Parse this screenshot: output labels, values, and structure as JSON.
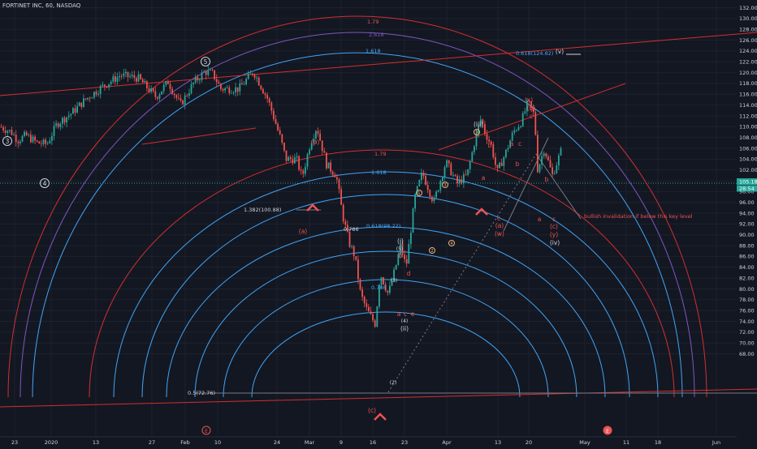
{
  "header": {
    "title": "FORTINET INC, 60, NASDAQ"
  },
  "price_axis": {
    "ticks": [
      "132.00",
      "130.00",
      "128.00",
      "126.00",
      "124.00",
      "122.00",
      "120.00",
      "118.00",
      "116.00",
      "114.00",
      "112.00",
      "110.00",
      "108.00",
      "106.00",
      "104.00",
      "102.00",
      "100.00",
      "98.00",
      "96.00",
      "94.00",
      "92.00",
      "90.00",
      "88.00",
      "86.00",
      "84.00",
      "82.00",
      "80.00",
      "78.00",
      "76.00",
      "74.00",
      "72.00",
      "70.00",
      "68.00"
    ],
    "last_price_badge": "105.18",
    "second_badge": "28:54"
  },
  "time_axis": {
    "ticks": [
      "23",
      "2020",
      "13",
      "27",
      "Feb",
      "10",
      "24",
      "Mar",
      "9",
      "16",
      "23",
      "Apr",
      "13",
      "20",
      "May",
      "11",
      "18",
      "Jun"
    ]
  },
  "colors": {
    "bg": "#131722",
    "up": "#26a69a",
    "down": "#ef5350",
    "red_line": "#d32f2f",
    "blue_line": "#42a5f5",
    "purple_line": "#7e57c2",
    "wave_white": "#d1d4dc",
    "wave_red": "#ef5350",
    "price_line": "#26a69a"
  },
  "fib_labels": {
    "f179_top": "1.79",
    "f1618_top": "1.618",
    "f2618_top": "2.618",
    "f0618_top": "0.618(124.82)",
    "f179_mid": "1.79",
    "f1618_mid": "1.618",
    "f1382": "1.382(100.88)",
    "f0618_mid": "0.618(98.22)",
    "f0786": "0.786",
    "f0786_low": "0.786",
    "f05": "0.5(72.76)"
  },
  "note": "bullish invalidation if below this key level",
  "waves": {
    "w3": "3",
    "w4": "4",
    "w5": "5",
    "a_left": "(a)",
    "b_left": "(b)",
    "c_low": "(c)",
    "i_sub": "(i)",
    "ii_sub": "(ii)",
    "iii_sub": "(iii)",
    "iv_sub": "(iv)",
    "v_sub": "(v)",
    "s1": "(1)",
    "s2": "(2)",
    "s3": "(3)",
    "s4": "(4)",
    "s5": "(5)",
    "m1": "1",
    "m2": "2",
    "m3": "3",
    "m4": "4",
    "m5": "5",
    "wa": "a",
    "wb": "b",
    "wc": "c",
    "wd": "d",
    "we": "e",
    "x_top": "(x)",
    "b_top": "(b)",
    "c_top": "c",
    "a_mid": "(a)",
    "w_mid": "(w)",
    "c_mid": "(c)",
    "y_mid": "(y)",
    "a_iii": "a",
    "b_iii": "b",
    "c_iii": "c",
    "a2": "a",
    "b2": "b",
    "c2": "c"
  },
  "markers": {
    "e1": "E",
    "e2": "E"
  },
  "chart_data": {
    "type": "candlestick",
    "title": "FORTINET INC, 60, NASDAQ",
    "xlabel": "",
    "ylabel": "",
    "ylim": [
      67,
      133
    ],
    "grid": true,
    "waypoints": [
      [
        0,
        110
      ],
      [
        14,
        109
      ],
      [
        22,
        107.5
      ],
      [
        32,
        108.4
      ],
      [
        46,
        107
      ],
      [
        58,
        106.8
      ],
      [
        70,
        110.5
      ],
      [
        88,
        112.5
      ],
      [
        105,
        115
      ],
      [
        125,
        117.3
      ],
      [
        148,
        119.5
      ],
      [
        170,
        119
      ],
      [
        192,
        115.5
      ],
      [
        207,
        118.3
      ],
      [
        222,
        114
      ],
      [
        238,
        118
      ],
      [
        252,
        120.2
      ],
      [
        262,
        119.8
      ],
      [
        272,
        117
      ],
      [
        294,
        117
      ],
      [
        312,
        120.2
      ],
      [
        330,
        115
      ],
      [
        345,
        108
      ],
      [
        352,
        104
      ],
      [
        365,
        104
      ],
      [
        372,
        100.6
      ],
      [
        382,
        107
      ],
      [
        390,
        110
      ],
      [
        402,
        103
      ],
      [
        414,
        101
      ],
      [
        422,
        93.5
      ],
      [
        430,
        88.5
      ],
      [
        437,
        86
      ],
      [
        444,
        79
      ],
      [
        452,
        76
      ],
      [
        462,
        73.5
      ],
      [
        468,
        83
      ],
      [
        478,
        79
      ],
      [
        487,
        84
      ],
      [
        493,
        88
      ],
      [
        500,
        84
      ],
      [
        505,
        90
      ],
      [
        511,
        97
      ],
      [
        520,
        101.5
      ],
      [
        534,
        96
      ],
      [
        549,
        103.5
      ],
      [
        563,
        99.5
      ],
      [
        575,
        101
      ],
      [
        584,
        107
      ],
      [
        592,
        111.5
      ],
      [
        597,
        109
      ],
      [
        605,
        106.5
      ],
      [
        612,
        101.5
      ],
      [
        622,
        105
      ],
      [
        632,
        109
      ],
      [
        642,
        111
      ],
      [
        650,
        114.5
      ],
      [
        658,
        112
      ],
      [
        662,
        102
      ],
      [
        670,
        106
      ],
      [
        680,
        101
      ],
      [
        692,
        106
      ]
    ]
  }
}
